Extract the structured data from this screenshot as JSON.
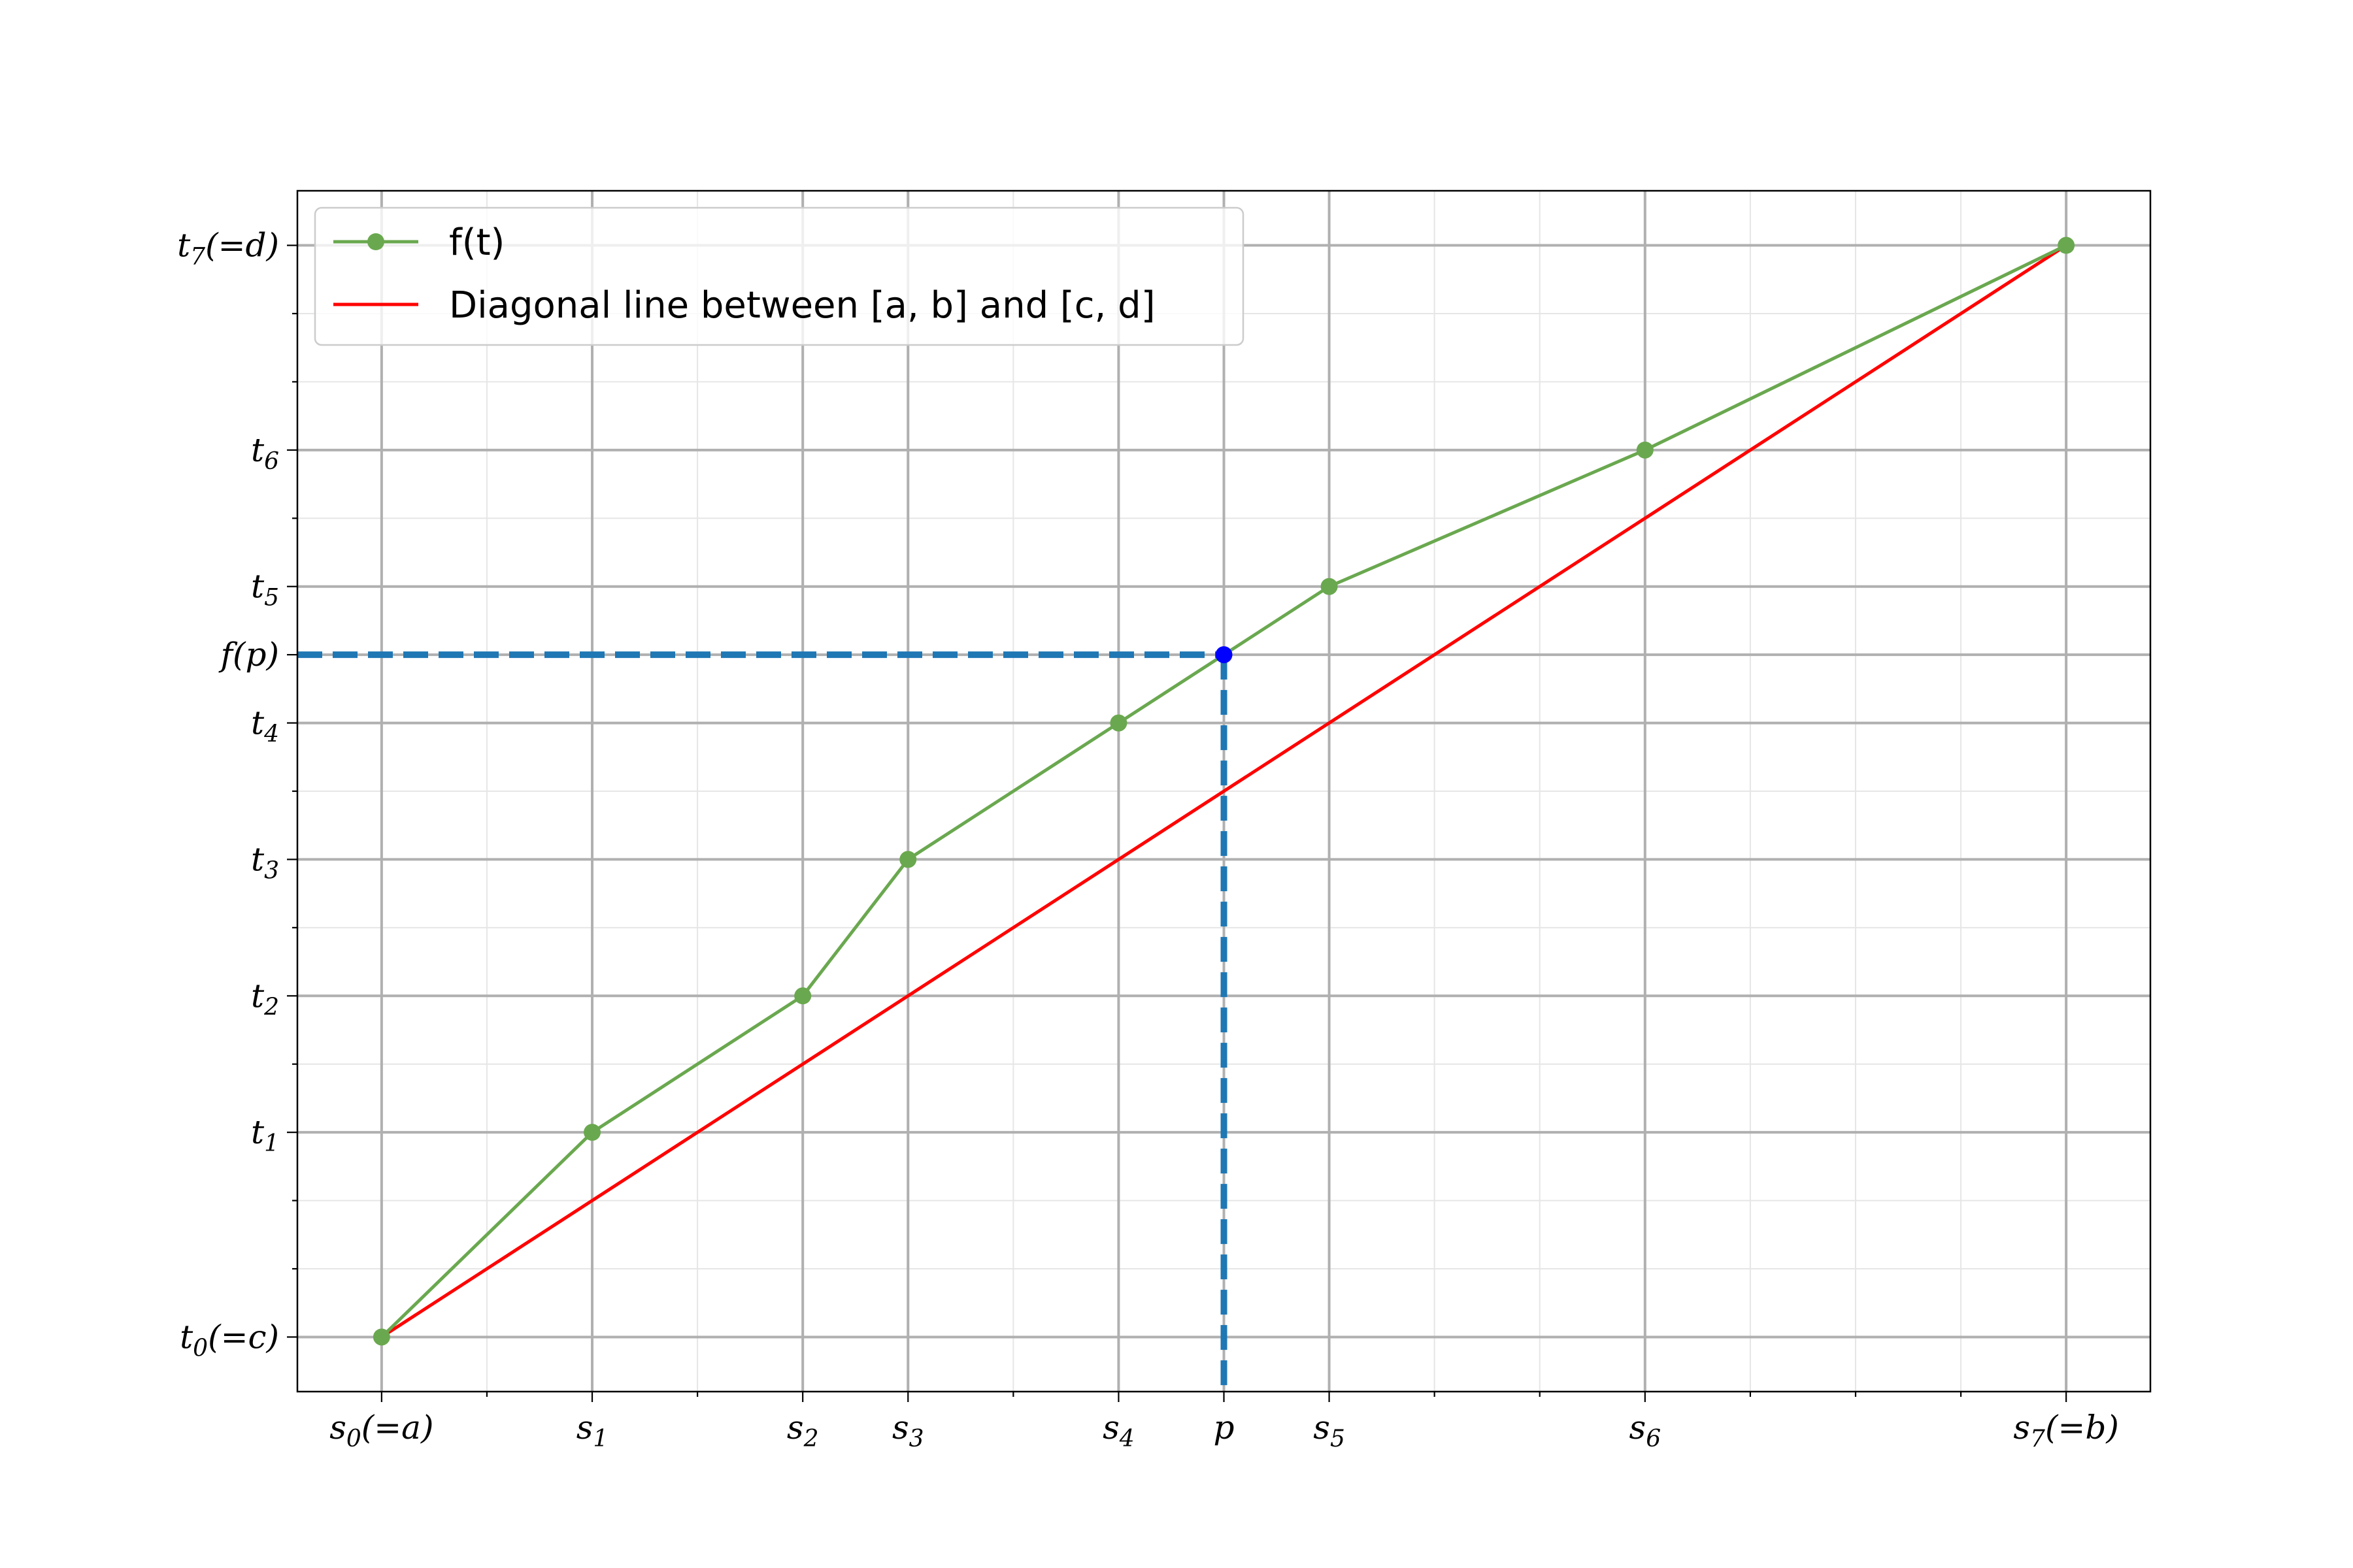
{
  "chart_data": {
    "type": "line",
    "title": "",
    "xlabel": "",
    "ylabel": "",
    "xlim": [
      -0.8,
      16.8
    ],
    "ylim": [
      -0.4,
      8.4
    ],
    "grid": true,
    "legend_position": "top-left",
    "x_ticks": [
      {
        "value": 0,
        "base": "s",
        "sub": "0",
        "suffix": "(=a)"
      },
      {
        "value": 2,
        "base": "s",
        "sub": "1",
        "suffix": ""
      },
      {
        "value": 4,
        "base": "s",
        "sub": "2",
        "suffix": ""
      },
      {
        "value": 5,
        "base": "s",
        "sub": "3",
        "suffix": ""
      },
      {
        "value": 7,
        "base": "s",
        "sub": "4",
        "suffix": ""
      },
      {
        "value": 8,
        "base": "p",
        "sub": "",
        "suffix": ""
      },
      {
        "value": 9,
        "base": "s",
        "sub": "5",
        "suffix": ""
      },
      {
        "value": 12,
        "base": "s",
        "sub": "6",
        "suffix": ""
      },
      {
        "value": 16,
        "base": "s",
        "sub": "7",
        "suffix": "(=b)"
      }
    ],
    "y_ticks": [
      {
        "value": 0,
        "base": "t",
        "sub": "0",
        "suffix": "(=c)"
      },
      {
        "value": 1.5,
        "base": "t",
        "sub": "1",
        "suffix": ""
      },
      {
        "value": 2.5,
        "base": "t",
        "sub": "2",
        "suffix": ""
      },
      {
        "value": 3.5,
        "base": "t",
        "sub": "3",
        "suffix": ""
      },
      {
        "value": 4.5,
        "base": "t",
        "sub": "4",
        "suffix": ""
      },
      {
        "value": 5.0,
        "base": "f(p)",
        "sub": "",
        "suffix": ""
      },
      {
        "value": 5.5,
        "base": "t",
        "sub": "5",
        "suffix": ""
      },
      {
        "value": 6.5,
        "base": "t",
        "sub": "6",
        "suffix": ""
      },
      {
        "value": 8,
        "base": "t",
        "sub": "7",
        "suffix": "(=d)"
      }
    ],
    "series": [
      {
        "name": "f(t)",
        "color": "#6aa84f",
        "marker": "circle",
        "x": [
          0,
          2,
          4,
          5,
          7,
          9,
          12,
          16
        ],
        "y": [
          0,
          1.5,
          2.5,
          3.5,
          4.5,
          5.5,
          6.5,
          8
        ]
      },
      {
        "name": "Diagonal line between [a, b] and [c, d]",
        "color": "#ff0000",
        "marker": "none",
        "x": [
          0,
          16
        ],
        "y": [
          0,
          8
        ]
      }
    ],
    "highlight_point": {
      "x": 8,
      "y": 5.0,
      "color": "#0000ff"
    },
    "guide_lines": {
      "color": "#1f77b4",
      "style": "dashed",
      "x": 8,
      "y": 5.0
    }
  }
}
